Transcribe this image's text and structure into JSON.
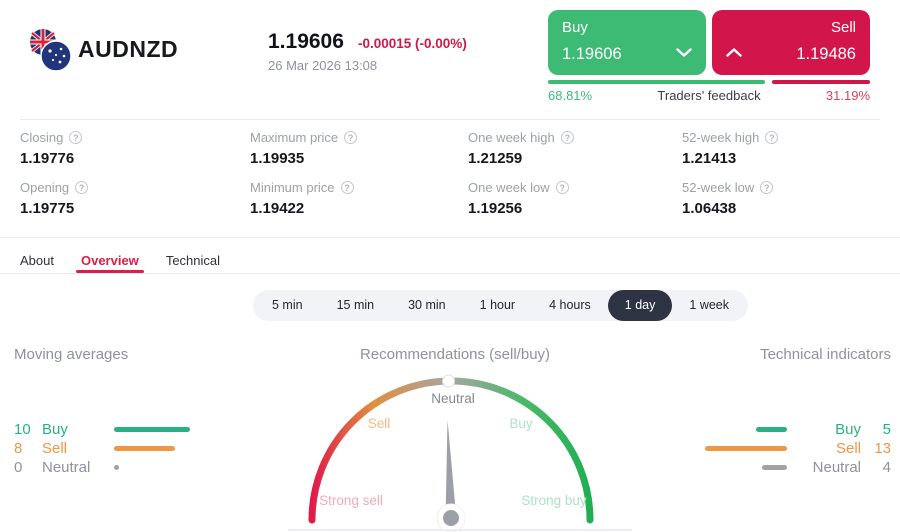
{
  "icons": {
    "question": "?"
  },
  "colors": {
    "buy_green": "#3dba74",
    "sell_red": "#d2164b",
    "teal_green": "#29b086",
    "orange": "#ee9843",
    "neutral_gray": "#9aa0a6",
    "tab_active_red": "#d91f45",
    "pill_active_dark": "#2f3444"
  },
  "header": {
    "pair": "AUDNZD",
    "price": "1.19606",
    "change": "-0.00015 (-0.00%)",
    "datetime": "26 Mar 2026 13:08",
    "buy_button": {
      "label": "Buy",
      "price": "1.19606"
    },
    "sell_button": {
      "label": "Sell",
      "price": "1.19486"
    },
    "feedback": {
      "buy_pct": "68.81%",
      "sell_pct": "31.19%",
      "label": "Traders' feedback",
      "buy_ratio": 68.81,
      "sell_ratio": 31.19
    }
  },
  "stats": [
    {
      "label": "Closing",
      "value": "1.19776"
    },
    {
      "label": "Maximum price",
      "value": "1.19935"
    },
    {
      "label": "One week high",
      "value": "1.21259"
    },
    {
      "label": "52-week high",
      "value": "1.21413"
    },
    {
      "label": "Opening",
      "value": "1.19775"
    },
    {
      "label": "Minimum price",
      "value": "1.19422"
    },
    {
      "label": "One week low",
      "value": "1.19256"
    },
    {
      "label": "52-week low",
      "value": "1.06438"
    }
  ],
  "tabs": {
    "active": "Overview",
    "items": [
      {
        "label": "About"
      },
      {
        "label": "Overview"
      },
      {
        "label": "Technical"
      }
    ]
  },
  "intervals": {
    "active": "1 day",
    "items": [
      {
        "label": "5 min"
      },
      {
        "label": "15 min"
      },
      {
        "label": "30 min"
      },
      {
        "label": "1 hour"
      },
      {
        "label": "4 hours"
      },
      {
        "label": "1 day"
      },
      {
        "label": "1 week"
      }
    ]
  },
  "chart_data": {
    "type": "gauge",
    "title": "Recommendations (sell/buy)",
    "gauge": {
      "labels": {
        "strong_sell": "Strong sell",
        "sell": "Sell",
        "neutral": "Neutral",
        "buy": "Buy",
        "strong_buy": "Strong buy"
      },
      "reading": "Neutral",
      "needle_deg": -2,
      "dot_deg": -1
    },
    "moving_averages": {
      "title": "Moving averages",
      "rows": [
        {
          "label": "Buy",
          "value": 10
        },
        {
          "label": "Sell",
          "value": 8
        },
        {
          "label": "Neutral",
          "value": 0
        }
      ]
    },
    "technical_indicators": {
      "title": "Technical indicators",
      "rows": [
        {
          "label": "Buy",
          "value": 5
        },
        {
          "label": "Sell",
          "value": 13
        },
        {
          "label": "Neutral",
          "value": 4
        }
      ]
    }
  }
}
